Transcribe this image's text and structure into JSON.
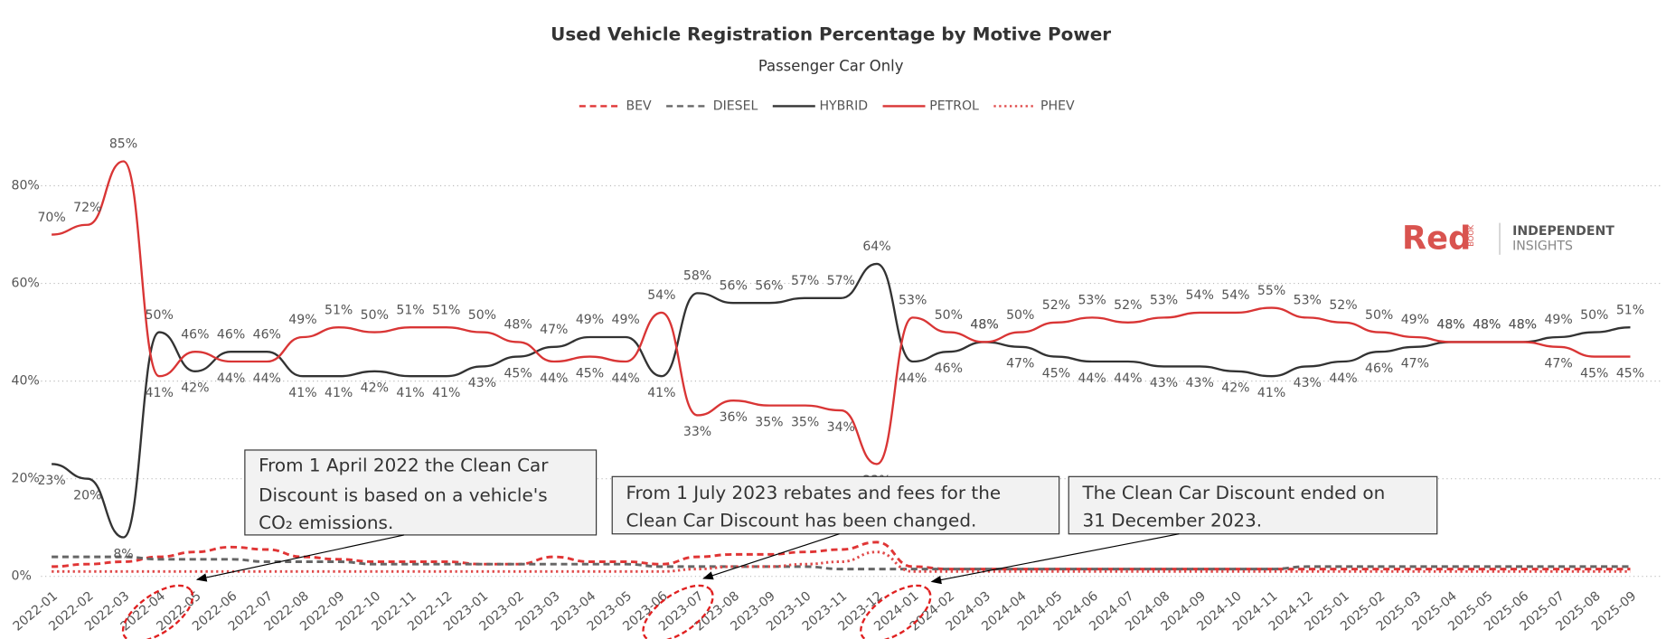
{
  "chart_data": {
    "type": "line",
    "title": "Used Vehicle Registration Percentage by Motive Power",
    "subtitle": "Passenger Car Only",
    "categories": [
      "2022-01",
      "2022-02",
      "2022-03",
      "2022-04",
      "2022-05",
      "2022-06",
      "2022-07",
      "2022-08",
      "2022-09",
      "2022-10",
      "2022-11",
      "2022-12",
      "2023-01",
      "2023-02",
      "2023-03",
      "2023-04",
      "2023-05",
      "2023-06",
      "2023-07",
      "2023-08",
      "2023-09",
      "2023-10",
      "2023-11",
      "2023-12",
      "2024-01",
      "2024-02",
      "2024-03",
      "2024-04",
      "2024-05",
      "2024-06",
      "2024-07",
      "2024-08",
      "2024-09",
      "2024-10",
      "2024-11",
      "2024-12",
      "2025-01",
      "2025-02",
      "2025-03",
      "2025-04",
      "2025-05",
      "2025-06",
      "2025-07",
      "2025-08",
      "2025-09"
    ],
    "series": [
      {
        "name": "BEV",
        "color": "#e03535",
        "style": "dashed",
        "values": [
          2,
          2.5,
          3,
          4,
          5,
          6,
          5.5,
          4,
          3.5,
          3,
          3,
          3,
          2.5,
          2.5,
          4,
          3,
          3,
          2.5,
          4,
          4.5,
          4.5,
          5,
          5.5,
          7,
          2,
          1.5,
          1.5,
          1.5,
          1.5,
          1.5,
          1.5,
          1.5,
          1.5,
          1.5,
          1.5,
          1.5,
          1.5,
          1.5,
          1.5,
          1.5,
          1.5,
          1.5,
          1.5,
          1.5,
          1.5
        ]
      },
      {
        "name": "DIESEL",
        "color": "#666666",
        "style": "dashed",
        "values": [
          4,
          4,
          4,
          3.5,
          3.5,
          3.5,
          3,
          3,
          3,
          2.5,
          2.5,
          2.5,
          2.5,
          2.5,
          2.5,
          2.5,
          2.5,
          2,
          2,
          2,
          2,
          2,
          1.5,
          1.5,
          1.5,
          1.5,
          1.5,
          1.5,
          1.5,
          1.5,
          1.5,
          1.5,
          1.5,
          1.5,
          1.5,
          2,
          2,
          2,
          2,
          2,
          2,
          2,
          2,
          2,
          2
        ]
      },
      {
        "name": "HYBRID",
        "color": "#333333",
        "style": "solid",
        "values": [
          23,
          20,
          8,
          50,
          42,
          46,
          46,
          41,
          41,
          42,
          41,
          41,
          43,
          45,
          47,
          49,
          49,
          41,
          58,
          56,
          56,
          57,
          57,
          64,
          44,
          46,
          48,
          47,
          45,
          44,
          44,
          43,
          43,
          42,
          41,
          43,
          44,
          46,
          47,
          48,
          48,
          48,
          49,
          50,
          51
        ],
        "value_labels": [
          "23%",
          "20%",
          "8%",
          "50%",
          "42%",
          "46%",
          "46%",
          "41%",
          "41%",
          "42%",
          "41%",
          "41%",
          "43%",
          "45%",
          "47%",
          "49%",
          "49%",
          "41%",
          "58%",
          "56%",
          "56%",
          "57%",
          "57%",
          "64%",
          "44%",
          "46%",
          "48%",
          "47%",
          "45%",
          "44%",
          "44%",
          "43%",
          "43%",
          "42%",
          "41%",
          "43%",
          "44%",
          "46%",
          "47%",
          "48%",
          "48%",
          "48%",
          "49%",
          "50%",
          "51%"
        ]
      },
      {
        "name": "PETROL",
        "color": "#d93535",
        "style": "solid",
        "values": [
          70,
          72,
          85,
          41,
          46,
          44,
          44,
          49,
          51,
          50,
          51,
          51,
          50,
          48,
          44,
          45,
          44,
          54,
          33,
          36,
          35,
          35,
          34,
          23,
          53,
          50,
          48,
          50,
          52,
          53,
          52,
          53,
          54,
          54,
          55,
          53,
          52,
          50,
          49,
          48,
          48,
          48,
          47,
          45,
          45
        ],
        "value_labels": [
          "70%",
          "72%",
          "85%",
          "41%",
          "46%",
          "44%",
          "44%",
          "49%",
          "51%",
          "50%",
          "51%",
          "51%",
          "50%",
          "48%",
          "44%",
          "45%",
          "44%",
          "54%",
          "33%",
          "36%",
          "35%",
          "35%",
          "34%",
          "23%",
          "53%",
          "50%",
          "48%",
          "50%",
          "52%",
          "53%",
          "52%",
          "53%",
          "54%",
          "54%",
          "55%",
          "53%",
          "52%",
          "50%",
          "49%",
          "48%",
          "48%",
          "48%",
          "47%",
          "45%",
          "45%"
        ]
      },
      {
        "name": "PHEV",
        "color": "#e04a4a",
        "style": "dotted",
        "values": [
          1,
          1,
          1,
          1,
          1,
          1,
          1,
          1,
          1,
          1,
          1,
          1,
          1,
          1,
          1,
          1,
          1,
          1,
          1.5,
          2,
          2,
          2.5,
          3,
          5,
          1,
          1,
          1,
          1,
          1,
          1,
          1,
          1,
          1,
          1,
          1,
          1,
          1,
          1,
          1,
          1,
          1,
          1,
          1,
          1,
          1
        ]
      }
    ],
    "ylim": [
      0,
      90
    ],
    "yticks": [
      {
        "value": 0,
        "label": "0%"
      },
      {
        "value": 20,
        "label": "20%"
      },
      {
        "value": 40,
        "label": "40%"
      },
      {
        "value": 60,
        "label": "60%"
      },
      {
        "value": 80,
        "label": "80%"
      }
    ],
    "grid": true,
    "legend": "top",
    "annotations": [
      {
        "lines": [
          "From 1 April 2022 the Clean Car",
          "Discount is based on a vehicle's",
          "CO₂ emissions."
        ]
      },
      {
        "lines": [
          "From 1 July 2023 rebates and fees for the",
          "Clean Car Discount has been changed."
        ]
      },
      {
        "lines": [
          "The Clean Car Discount ended on",
          "31 December 2023."
        ]
      }
    ]
  },
  "logo": {
    "brand": "Red",
    "brand_small": "BOOK",
    "tagline": [
      "INDEPENDENT",
      "INSIGHTS"
    ]
  }
}
